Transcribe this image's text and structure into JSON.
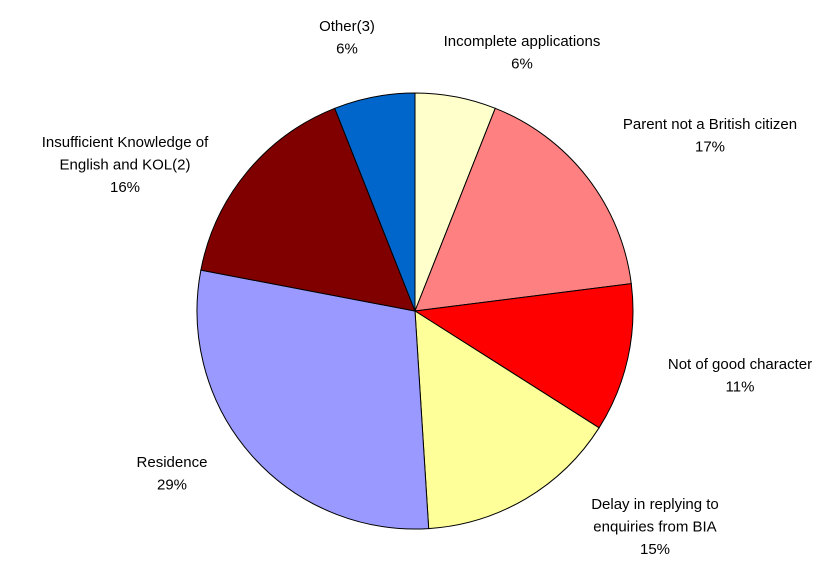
{
  "chart_data": {
    "type": "pie",
    "categories": [
      "Incomplete applications",
      "Parent not a British citizen",
      "Not of good character",
      "Delay in replying to enquiries from BIA",
      "Residence",
      "Insufficient Knowledge of English and KOL(2)",
      "Other(3)"
    ],
    "values": [
      6,
      17,
      11,
      15,
      29,
      16,
      6
    ],
    "value_labels": [
      "6%",
      "17%",
      "11%",
      "15%",
      "29%",
      "16%",
      "6%"
    ],
    "colors": [
      "#ffffcc",
      "#ff8080",
      "#ff0000",
      "#ffff99",
      "#9999ff",
      "#800000",
      "#0066cc"
    ]
  }
}
